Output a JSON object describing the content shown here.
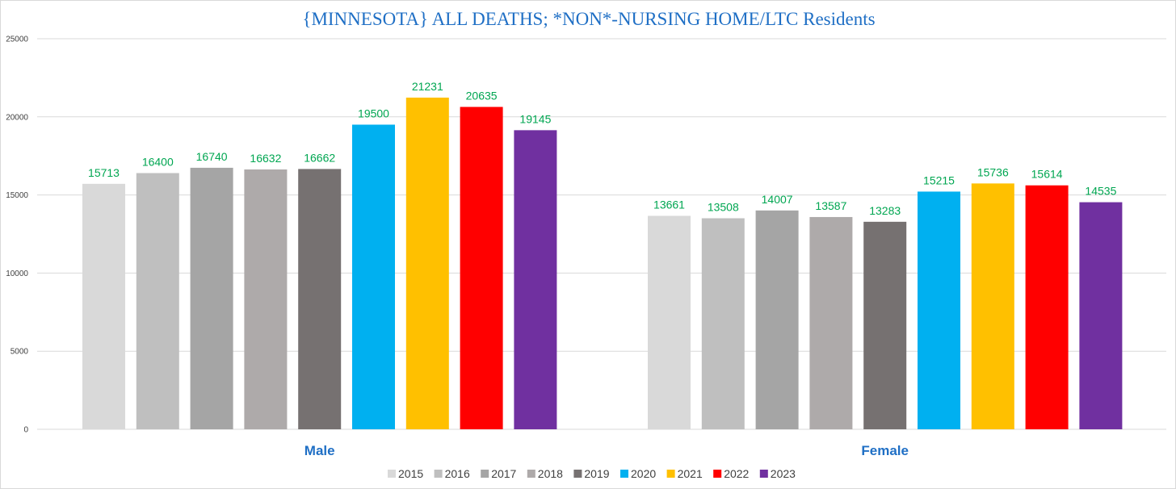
{
  "chart_data": {
    "type": "bar",
    "title": "{MINNESOTA}  ALL DEATHS; *NON*-NURSING HOME/LTC Residents",
    "xlabel": "",
    "ylabel": "",
    "ylim": [
      0,
      25000
    ],
    "yticks": [
      0,
      5000,
      10000,
      15000,
      20000,
      25000
    ],
    "grid": true,
    "legend_position": "bottom",
    "categories": [
      "Male",
      "Female"
    ],
    "series": [
      {
        "name": "2015",
        "color": "#d9d9d9",
        "values": [
          15713,
          13661
        ]
      },
      {
        "name": "2016",
        "color": "#bfbfbf",
        "values": [
          16400,
          13508
        ]
      },
      {
        "name": "2017",
        "color": "#a5a5a5",
        "values": [
          16740,
          14007
        ]
      },
      {
        "name": "2018",
        "color": "#aeaaaa",
        "values": [
          16632,
          13587
        ]
      },
      {
        "name": "2019",
        "color": "#767171",
        "values": [
          16662,
          13283
        ]
      },
      {
        "name": "2020",
        "color": "#00b0f0",
        "values": [
          19500,
          15215
        ]
      },
      {
        "name": "2021",
        "color": "#ffc000",
        "values": [
          21231,
          15736
        ]
      },
      {
        "name": "2022",
        "color": "#ff0000",
        "values": [
          20635,
          15614
        ]
      },
      {
        "name": "2023",
        "color": "#7030a0",
        "values": [
          19145,
          14535
        ]
      }
    ]
  }
}
